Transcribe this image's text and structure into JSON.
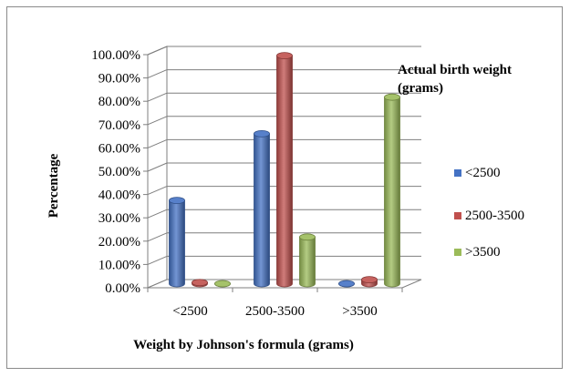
{
  "chart_data": {
    "type": "bar",
    "title": "",
    "xlabel": "Weight  by Johnson's formula (grams)",
    "ylabel": "Percentage",
    "categories": [
      "<2500",
      "2500-3500",
      ">3500"
    ],
    "y_ticks": [
      "0.00%",
      "10.00%",
      "20.00%",
      "30.00%",
      "40.00%",
      "50.00%",
      "60.00%",
      "70.00%",
      "80.00%",
      "90.00%",
      "100.00%"
    ],
    "ylim": [
      0,
      100
    ],
    "grid": true,
    "legend_title": [
      "Actual birth weight",
      "(grams)"
    ],
    "legend_position": "right",
    "series": [
      {
        "name": "<2500",
        "color": "#4472c4",
        "values": [
          35.7,
          64.3,
          0
        ]
      },
      {
        "name": "2500-3500",
        "color": "#c0504d",
        "values": [
          0.5,
          97.8,
          1.7
        ]
      },
      {
        "name": ">3500",
        "color": "#9bbb59",
        "values": [
          0,
          20.0,
          80.0
        ]
      }
    ]
  }
}
